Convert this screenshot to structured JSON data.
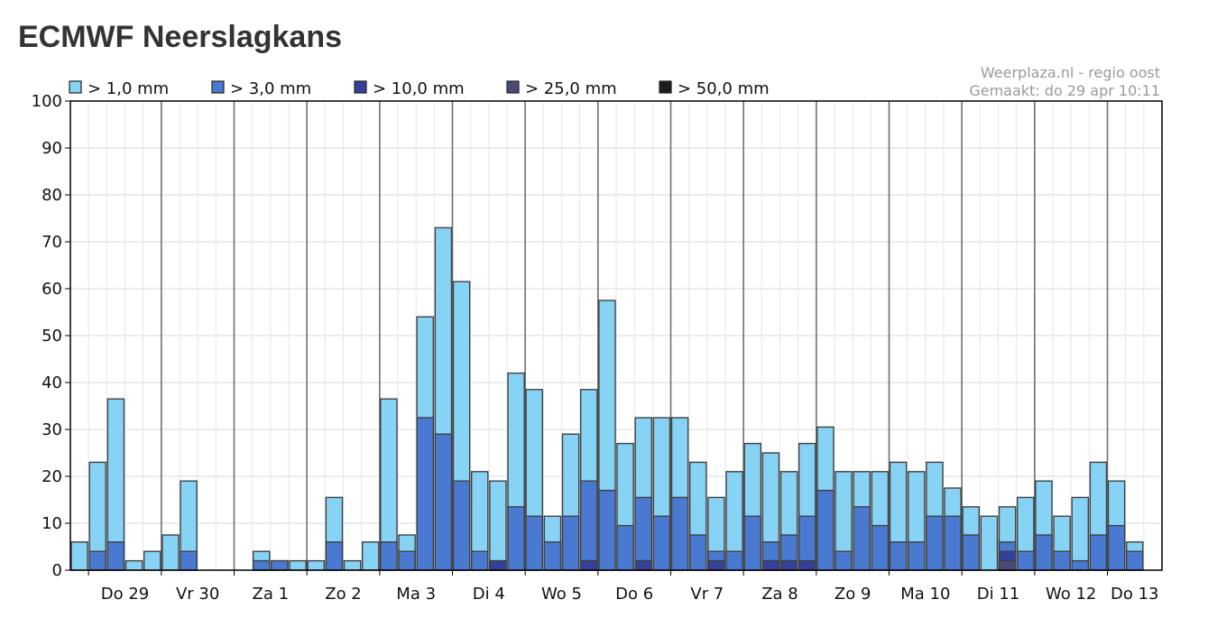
{
  "title": "ECMWF Neerslagkans",
  "source": {
    "line1": "Weerplaza.nl - regio oost",
    "line2": "Gemaakt: do 29 apr 10:11"
  },
  "colors": {
    "series": [
      "#87d3f5",
      "#4a79d1",
      "#35409a",
      "#4a4a7a",
      "#1c1c1c"
    ],
    "bar_stroke": "#404040",
    "grid": "#d8d8d8",
    "day_line": "#707070"
  },
  "chart_data": {
    "type": "bar",
    "stacked": "overlapping",
    "ylim": [
      0,
      100
    ],
    "yticks": [
      0,
      10,
      20,
      30,
      40,
      50,
      60,
      70,
      80,
      90,
      100
    ],
    "grid": true,
    "legend_position": "top",
    "day_labels": [
      "Do 29",
      "Vr 30",
      "Za 1",
      "Zo 2",
      "Ma 3",
      "Di 4",
      "Wo 5",
      "Do 6",
      "Vr 7",
      "Za 8",
      "Zo 9",
      "Ma 10",
      "Di 11",
      "Wo 12",
      "Do 13"
    ],
    "series": [
      {
        "name": "> 1,0 mm",
        "values": [
          6,
          23,
          36.5,
          2,
          4,
          7.5,
          19,
          0,
          0,
          0,
          4,
          2,
          2,
          2,
          15.5,
          2,
          6,
          36.5,
          7.5,
          54,
          73,
          61.5,
          21,
          19,
          42,
          38.5,
          11.5,
          29,
          38.5,
          57.5,
          27,
          32.5,
          32.5,
          32.5,
          23,
          15.5,
          21,
          27,
          25,
          21,
          27,
          30.5,
          21,
          21,
          21,
          23,
          21,
          23,
          17.5,
          13.5,
          11.5,
          13.5,
          15.5,
          19,
          11.5,
          15.5,
          23,
          19,
          6
        ]
      },
      {
        "name": "> 3,0 mm",
        "values": [
          0,
          4,
          6,
          0,
          0,
          0,
          4,
          0,
          0,
          0,
          2,
          2,
          0,
          0,
          6,
          0,
          0,
          6,
          4,
          32.5,
          29,
          19,
          4,
          2,
          13.5,
          11.5,
          6,
          11.5,
          19,
          17,
          9.5,
          15.5,
          11.5,
          15.5,
          7.5,
          4,
          4,
          11.5,
          6,
          7.5,
          11.5,
          17,
          4,
          13.5,
          9.5,
          6,
          6,
          11.5,
          11.5,
          7.5,
          0,
          6,
          4,
          7.5,
          4,
          2,
          7.5,
          9.5,
          4
        ]
      },
      {
        "name": "> 10,0 mm",
        "values": [
          0,
          0,
          0,
          0,
          0,
          0,
          0,
          0,
          0,
          0,
          0,
          0,
          0,
          0,
          0,
          0,
          0,
          0,
          0,
          0,
          0,
          0,
          0,
          2,
          0,
          0,
          0,
          0,
          2,
          0,
          0,
          2,
          0,
          0,
          0,
          2,
          0,
          0,
          2,
          2,
          2,
          0,
          0,
          0,
          0,
          0,
          0,
          0,
          0,
          0,
          0,
          4,
          0,
          0,
          0,
          0,
          0,
          0,
          0
        ]
      },
      {
        "name": "> 25,0 mm",
        "values": [
          0,
          0,
          0,
          0,
          0,
          0,
          0,
          0,
          0,
          0,
          0,
          0,
          0,
          0,
          0,
          0,
          0,
          0,
          0,
          0,
          0,
          0,
          0,
          0,
          0,
          0,
          0,
          0,
          0,
          0,
          0,
          0,
          0,
          0,
          0,
          0,
          0,
          0,
          0,
          0,
          0,
          0,
          0,
          0,
          0,
          0,
          0,
          0,
          0,
          0,
          0,
          2,
          0,
          0,
          0,
          0,
          0,
          0,
          0
        ]
      },
      {
        "name": "> 50,0 mm",
        "values": [
          0,
          0,
          0,
          0,
          0,
          0,
          0,
          0,
          0,
          0,
          0,
          0,
          0,
          0,
          0,
          0,
          0,
          0,
          0,
          0,
          0,
          0,
          0,
          0,
          0,
          0,
          0,
          0,
          0,
          0,
          0,
          0,
          0,
          0,
          0,
          0,
          0,
          0,
          0,
          0,
          0,
          0,
          0,
          0,
          0,
          0,
          0,
          0,
          0,
          0,
          0,
          0,
          0,
          0,
          0,
          0,
          0,
          0,
          0
        ]
      }
    ]
  }
}
